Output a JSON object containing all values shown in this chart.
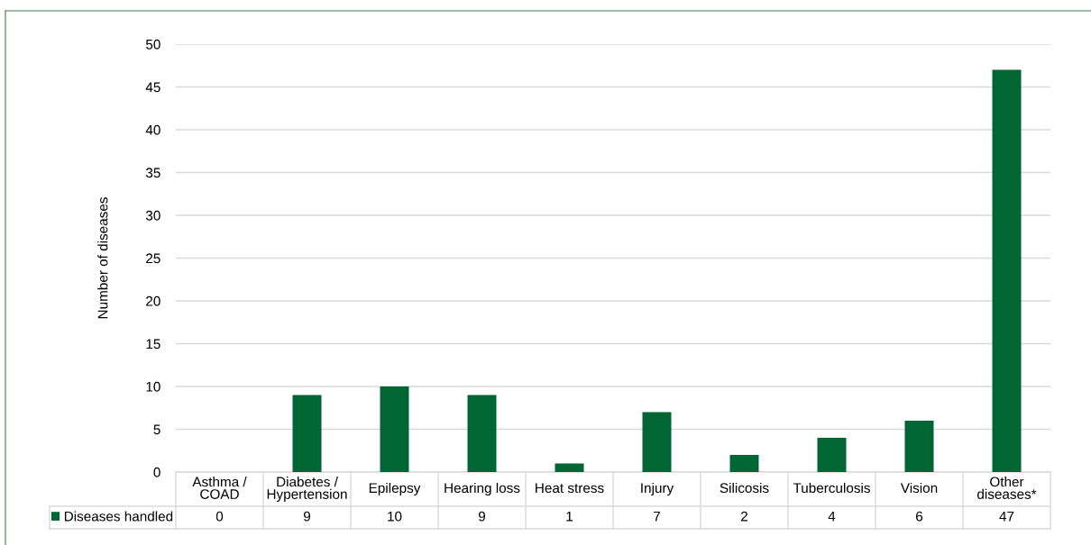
{
  "chart_data": {
    "type": "bar",
    "ylabel": "Number of diseases",
    "categories": [
      "Asthma /\nCOAD",
      "Diabetes /\nHypertension",
      "Epilepsy",
      "Hearing loss",
      "Heat stress",
      "Injury",
      "Silicosis",
      "Tuberculosis",
      "Vision",
      "Other\ndiseases*"
    ],
    "series": [
      {
        "name": "Diseases handled",
        "color": "#006633",
        "values": [
          0,
          9,
          10,
          9,
          1,
          7,
          2,
          4,
          6,
          47
        ]
      }
    ],
    "ylim": [
      0,
      50
    ],
    "yticks": [
      0,
      5,
      10,
      15,
      20,
      25,
      30,
      35,
      40,
      45,
      50
    ],
    "grid": "y",
    "legend": "bottom",
    "data_labels": true
  }
}
